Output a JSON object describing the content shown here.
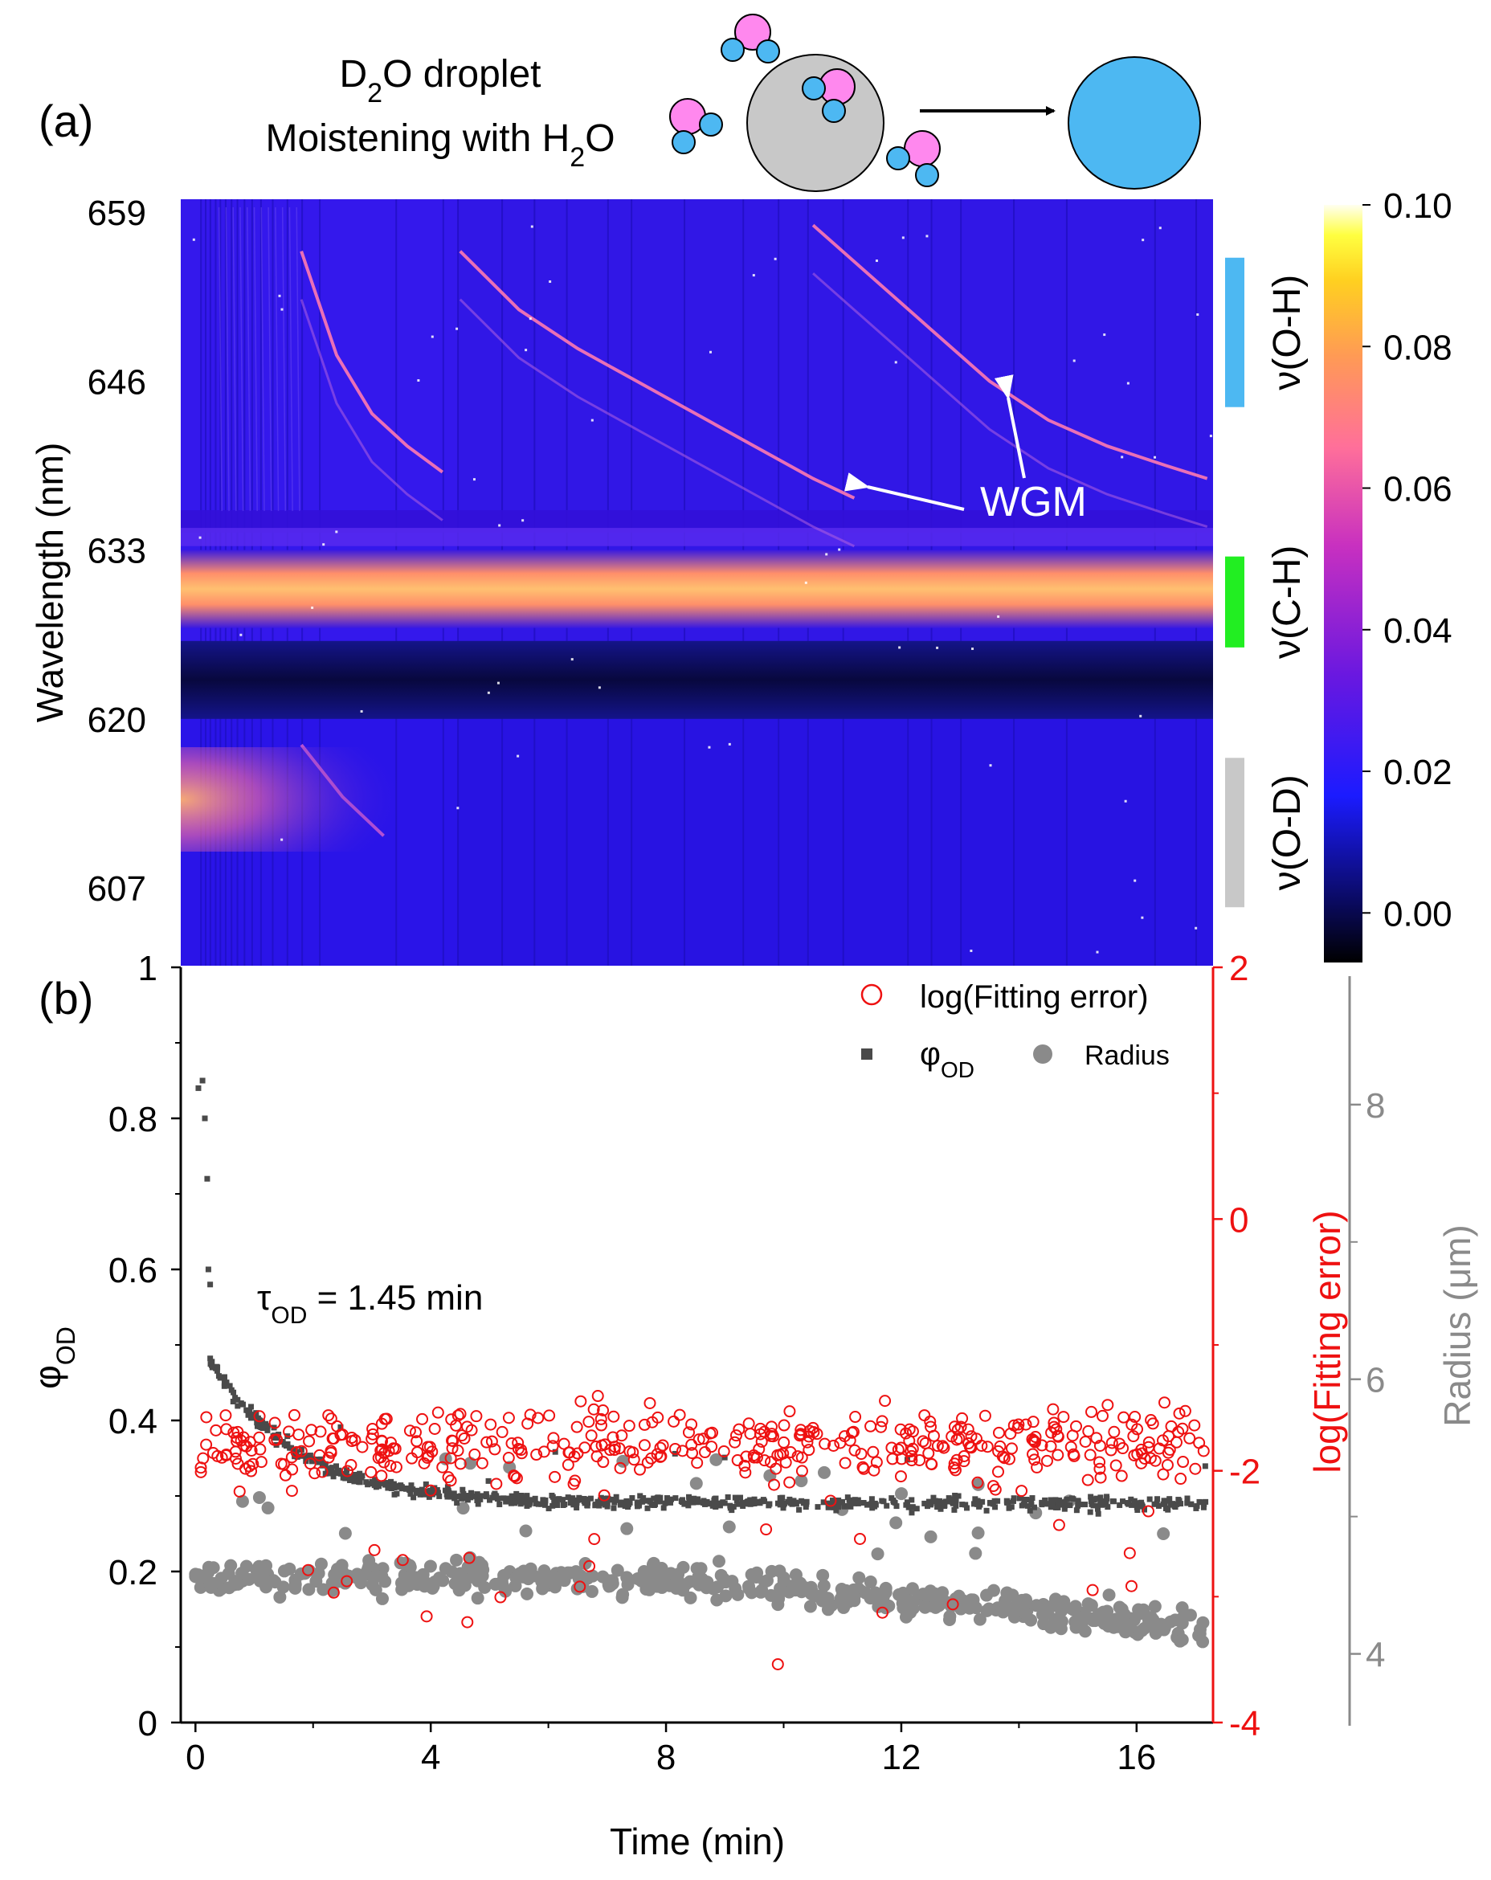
{
  "header": {
    "panel_a": "(a)",
    "panel_b": "(b)",
    "title_line1_pre": "D",
    "title_line1_sub": "2",
    "title_line1_post": "O droplet",
    "title_line2_pre": "Moistening with H",
    "title_line2_sub": "2",
    "title_line2_post": "O"
  },
  "panel_a": {
    "ylabel": "Wavelength (nm)",
    "yticks": [
      "659",
      "646",
      "633",
      "620",
      "607"
    ],
    "colorbar": {
      "ticks": [
        "0.10",
        "0.08",
        "0.06",
        "0.04",
        "0.02",
        "0.00"
      ],
      "range": [
        -0.007,
        0.1
      ]
    },
    "bands": [
      {
        "label_greek": "ν",
        "label": "(O-H)",
        "color": "#4db8f2",
        "range_nm": [
          644,
          655.5
        ]
      },
      {
        "label_greek": "ν",
        "label": "(C-H)",
        "color": "#22ee22",
        "range_nm": [
          625.5,
          632.5
        ]
      },
      {
        "label_greek": "ν",
        "label": "(O-D)",
        "color": "#c8c8c8",
        "range_nm": [
          605.5,
          617
        ]
      }
    ],
    "annotation": "WGM",
    "colors": {
      "background": "#2a14e8",
      "band": "#ffb86a",
      "dark": "#0a0a55"
    }
  },
  "chart_data": [
    {
      "type": "heatmap",
      "panel": "(a)",
      "xlabel": "Time (min)",
      "ylabel": "Wavelength (nm)",
      "xlim": [
        -0.25,
        17.3
      ],
      "ylim": [
        601,
        660
      ],
      "colorbar_range": [
        -0.007,
        0.1
      ],
      "wgm_modes": [
        {
          "x": [
            1.8,
            2.4,
            3.0,
            3.6,
            4.2
          ],
          "y": [
            656,
            648,
            643.5,
            641,
            639
          ]
        },
        {
          "x": [
            4.5,
            5.5,
            6.5,
            7.5,
            8.5,
            9.5,
            10.5,
            11.2
          ],
          "y": [
            656,
            651.5,
            648.5,
            646,
            643.5,
            641,
            638.5,
            637
          ]
        },
        {
          "x": [
            10.5,
            11.5,
            12.5,
            13.5,
            14.5,
            15.5,
            16.5,
            17.2
          ],
          "y": [
            658,
            654,
            650,
            646,
            643,
            641,
            639.5,
            638.5
          ]
        },
        {
          "x": [
            1.8,
            2.5,
            3.2
          ],
          "y": [
            618,
            614,
            611
          ]
        }
      ],
      "bands_nm": {
        "C-H_center": 630,
        "C-H_width": 3,
        "weak_line": 634,
        "dark_gap": [
          620,
          626
        ]
      }
    },
    {
      "type": "scatter",
      "panel": "(b)",
      "xlabel": "Time (min)",
      "ylabel": "φOD",
      "y2label": "log(Fitting error)",
      "y3label": "Radius (μm)",
      "xlim": [
        -0.25,
        17.3
      ],
      "ylim": [
        0,
        1
      ],
      "y2lim": [
        -4,
        2
      ],
      "y3lim": [
        3.5,
        9.0
      ],
      "xticks": [
        "0",
        "4",
        "8",
        "12",
        "16"
      ],
      "yticks": [
        "0",
        "0.2",
        "0.4",
        "0.6",
        "0.8",
        "1"
      ],
      "y2ticks": [
        "-4",
        "-2",
        "0",
        "2"
      ],
      "y3ticks": [
        "4",
        "6",
        "8"
      ],
      "tau_label": "τOD = 1.45 min",
      "phi_early": {
        "x": [
          0.05,
          0.12,
          0.16,
          0.2,
          0.22,
          0.25
        ],
        "y": [
          0.84,
          0.85,
          0.8,
          0.72,
          0.6,
          0.58
        ]
      },
      "phi_fit": {
        "tau": 1.45,
        "y0": 0.29,
        "A": 0.19,
        "t0": 0.25
      },
      "log_error_mean": -1.8,
      "radius_mean": [
        4.55,
        4.2
      ]
    }
  ],
  "legend": {
    "log_error": "log(Fitting error)",
    "phi_pre": "φ",
    "phi_sub": "OD",
    "radius": "Radius"
  },
  "axes_b": {
    "xlabel": "Time (min)",
    "xticks": [
      "0",
      "4",
      "8",
      "12",
      "16"
    ],
    "yticks": [
      "0",
      "0.2",
      "0.4",
      "0.6",
      "0.8",
      "1"
    ],
    "y2ticks": [
      "-4",
      "-2",
      "0",
      "2"
    ],
    "y3ticks": [
      "4",
      "6",
      "8"
    ],
    "ylabel_pre": "φ",
    "ylabel_sub": "OD",
    "y2label": "log(Fitting error)",
    "y3label": "Radius (μm)",
    "tau_pre": "τ",
    "tau_sub": "OD",
    "tau_post": " = 1.45 min",
    "colors": {
      "phi": "#4a4a4a",
      "error": "#ee1111",
      "radius": "#8a8a8a"
    }
  }
}
